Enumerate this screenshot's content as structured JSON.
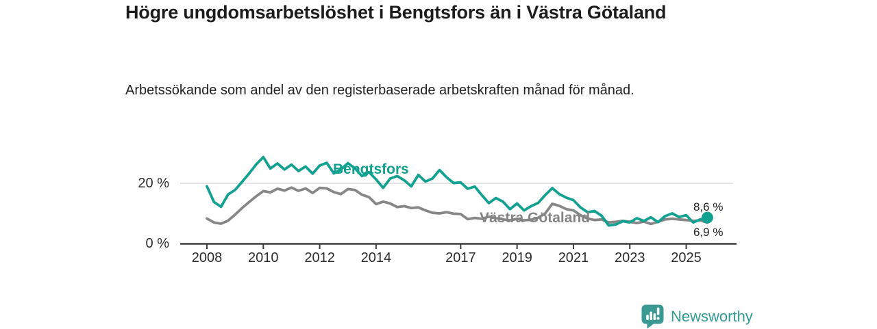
{
  "header": {
    "title": "Högre ungdomsarbetslöshet i Bengtsfors än i Västra Götaland",
    "subtitle": "Arbetssökande som andel av den registerbaserade arbetskraften månad för månad."
  },
  "colors": {
    "accent_teal": "#12a090",
    "series_gray": "#878787",
    "axis": "#3d3d3d",
    "gridline": "#d9d9d9",
    "brand_teal": "#2f9a94",
    "logo_teal": "#3a9a93"
  },
  "chart_data": {
    "type": "line",
    "title": "Högre ungdomsarbetslöshet i Bengtsfors än i Västra Götaland",
    "subtitle": "Arbetssökande som andel av den registerbaserade arbetskraften månad för månad.",
    "unit": "%",
    "grid": "horizontal-20-only",
    "legend_position": "inline-labels",
    "xlim": [
      2007.5,
      2026.4
    ],
    "ylim": [
      0,
      30
    ],
    "x_ticks": [
      2008,
      2010,
      2012,
      2014,
      2017,
      2019,
      2021,
      2023,
      2025
    ],
    "y_ticks": [
      {
        "value": 20,
        "label": "20 %"
      },
      {
        "value": 0,
        "label": "0 %"
      }
    ],
    "series": [
      {
        "name": "Bengtsfors",
        "color": "#12a090",
        "end_label": "8,6 %",
        "end_value": 8.6,
        "end_dot": true,
        "x_start": 2008.0,
        "x_step": 0.25,
        "values": [
          19.0,
          13.8,
          12.2,
          16.3,
          17.8,
          20.5,
          23.3,
          26.3,
          28.7,
          24.9,
          26.6,
          24.6,
          26.2,
          24.1,
          25.6,
          23.2,
          25.9,
          26.8,
          23.3,
          24.6,
          26.7,
          25.0,
          22.4,
          23.7,
          21.3,
          18.5,
          21.6,
          22.4,
          21.0,
          19.0,
          22.8,
          20.6,
          21.6,
          24.4,
          22.0,
          20.1,
          20.3,
          18.2,
          18.9,
          16.1,
          13.4,
          15.1,
          13.9,
          11.4,
          13.3,
          11.0,
          12.4,
          13.5,
          16.1,
          18.4,
          16.4,
          15.2,
          14.4,
          12.0,
          10.4,
          10.8,
          9.2,
          6.0,
          6.3,
          7.4,
          7.0,
          8.4,
          7.5,
          8.7,
          7.1,
          9.1,
          10.0,
          8.8,
          9.4,
          7.0,
          8.0,
          8.6
        ]
      },
      {
        "name": "Västra Götaland",
        "color": "#878787",
        "end_label": "6,9 %",
        "end_value": 6.9,
        "end_dot": false,
        "x_start": 2008.0,
        "x_step": 0.25,
        "values": [
          8.3,
          7.0,
          6.6,
          7.6,
          9.6,
          11.8,
          13.8,
          15.7,
          17.4,
          17.0,
          18.2,
          17.6,
          18.6,
          17.5,
          18.3,
          16.8,
          18.5,
          18.3,
          17.1,
          16.4,
          18.1,
          17.8,
          16.2,
          15.4,
          13.1,
          13.9,
          13.3,
          12.1,
          12.4,
          11.8,
          12.0,
          11.0,
          10.2,
          10.0,
          10.4,
          9.9,
          9.8,
          8.1,
          8.5,
          8.2,
          8.9,
          8.4,
          8.0,
          7.7,
          8.2,
          7.7,
          7.9,
          8.6,
          10.0,
          13.2,
          12.5,
          11.4,
          11.0,
          9.4,
          8.3,
          7.8,
          8.0,
          7.0,
          7.2,
          7.5,
          7.2,
          6.8,
          7.3,
          6.5,
          7.2,
          8.0,
          8.2,
          8.0,
          7.8,
          7.5,
          7.7,
          6.9
        ]
      }
    ]
  },
  "footer": {
    "brand": "Newsworthy",
    "logo_icon": "newsworthy-logo-icon"
  }
}
